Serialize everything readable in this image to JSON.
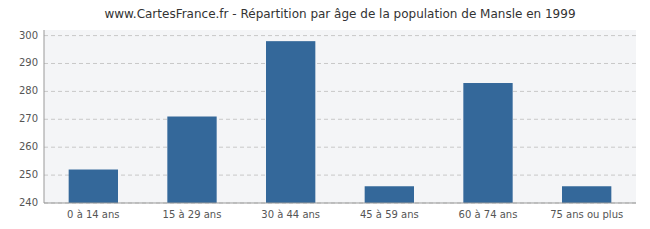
{
  "chart_data": {
    "type": "bar",
    "title": "www.CartesFrance.fr - Répartition par âge de la population de Mansle en 1999",
    "categories": [
      "0 à 14 ans",
      "15 à 29 ans",
      "30 à 44 ans",
      "45 à 59 ans",
      "60 à 74 ans",
      "75 ans ou plus"
    ],
    "values": [
      252,
      271,
      298,
      246,
      283,
      246
    ],
    "color": "#34689a",
    "ylim": [
      240,
      302
    ],
    "yticks": [
      240,
      250,
      260,
      270,
      280,
      290,
      300
    ],
    "grid": true
  }
}
